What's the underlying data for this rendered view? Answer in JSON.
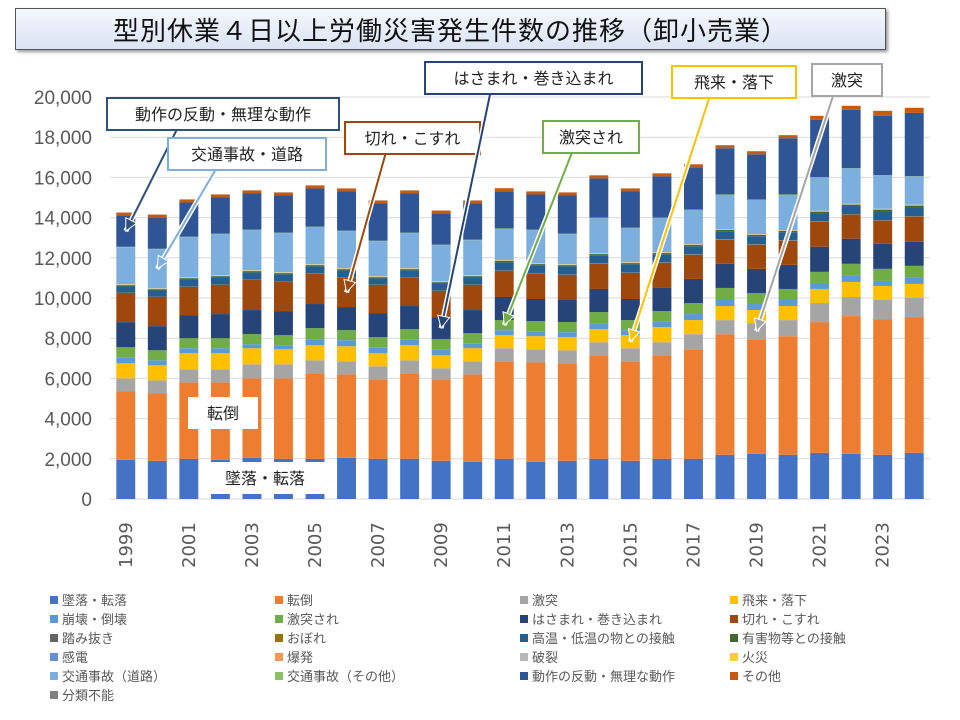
{
  "title": "型別休業４日以上労働災害発生件数の推移（卸小売業）",
  "chart_data": {
    "type": "bar",
    "stacked": true,
    "title": "型別休業４日以上労働災害発生件数の推移（卸小売業）",
    "xlabel": "",
    "ylabel": "",
    "ylim": [
      0,
      20000
    ],
    "yticks": [
      0,
      2000,
      4000,
      6000,
      8000,
      10000,
      12000,
      14000,
      16000,
      18000,
      20000
    ],
    "ytick_labels": [
      "0",
      "2,000",
      "4,000",
      "6,000",
      "8,000",
      "10,000",
      "12,000",
      "14,000",
      "16,000",
      "18,000",
      "20,000"
    ],
    "grid": true,
    "legend_position": "bottom",
    "categories": [
      "1999",
      "2000",
      "2001",
      "2002",
      "2003",
      "2004",
      "2005",
      "2006",
      "2007",
      "2008",
      "2009",
      "2010",
      "2011",
      "2012",
      "2013",
      "2014",
      "2015",
      "2016",
      "2017",
      "2018",
      "2019",
      "2020",
      "2021",
      "2022",
      "2023",
      "2024"
    ],
    "xtick_labels": [
      "1999",
      "2001",
      "2003",
      "2005",
      "2007",
      "2009",
      "2011",
      "2013",
      "2015",
      "2017",
      "2019",
      "2021",
      "2023"
    ],
    "series": [
      {
        "name": "墜落・転落",
        "color": "#4472C4",
        "values": [
          1950,
          1900,
          2000,
          1950,
          2050,
          2000,
          2000,
          2050,
          2000,
          2000,
          1900,
          1850,
          2000,
          1850,
          1900,
          2000,
          1900,
          2000,
          2000,
          2200,
          2250,
          2200,
          2300,
          2250,
          2200,
          2300
        ]
      },
      {
        "name": "転倒",
        "color": "#ED7D31",
        "values": [
          3400,
          3350,
          3800,
          3850,
          3950,
          4000,
          4250,
          4150,
          3950,
          4250,
          4050,
          4350,
          4850,
          4950,
          4850,
          5150,
          4950,
          5150,
          5450,
          6000,
          5700,
          5900,
          6500,
          6850,
          6750,
          6750
        ]
      },
      {
        "name": "激突",
        "color": "#A5A5A5",
        "values": [
          650,
          650,
          650,
          650,
          700,
          700,
          650,
          650,
          650,
          650,
          550,
          650,
          650,
          650,
          650,
          650,
          650,
          650,
          750,
          700,
          800,
          800,
          950,
          950,
          950,
          950
        ]
      },
      {
        "name": "飛来・落下",
        "color": "#FFC000",
        "values": [
          750,
          750,
          800,
          800,
          800,
          750,
          750,
          750,
          650,
          750,
          650,
          650,
          650,
          650,
          650,
          650,
          650,
          750,
          700,
          700,
          650,
          700,
          700,
          750,
          700,
          700
        ]
      },
      {
        "name": "崩壊・倒壊",
        "color": "#5B9BD5",
        "values": [
          300,
          250,
          250,
          250,
          200,
          200,
          300,
          300,
          300,
          300,
          300,
          250,
          250,
          250,
          250,
          300,
          250,
          300,
          300,
          350,
          300,
          300,
          300,
          300,
          250,
          300
        ]
      },
      {
        "name": "激突され",
        "color": "#70AD47",
        "values": [
          500,
          500,
          500,
          500,
          500,
          500,
          550,
          500,
          500,
          500,
          500,
          500,
          500,
          500,
          500,
          550,
          500,
          500,
          550,
          550,
          550,
          550,
          550,
          600,
          600,
          600
        ]
      },
      {
        "name": "はさまれ・巻き込まれ",
        "color": "#264478",
        "values": [
          1250,
          1200,
          1150,
          1200,
          1200,
          1200,
          1200,
          1150,
          1200,
          1150,
          1100,
          1150,
          1150,
          1100,
          1100,
          1150,
          1050,
          1150,
          1200,
          1200,
          1200,
          1200,
          1250,
          1250,
          1250,
          1200
        ]
      },
      {
        "name": "切れ・こすれ",
        "color": "#9E480E",
        "values": [
          1450,
          1450,
          1400,
          1450,
          1500,
          1450,
          1500,
          1450,
          1400,
          1400,
          1300,
          1250,
          1300,
          1250,
          1250,
          1250,
          1300,
          1250,
          1200,
          1200,
          1200,
          1200,
          1250,
          1200,
          1150,
          1250
        ]
      },
      {
        "name": "踏み抜き",
        "color": "#636363",
        "values": [
          20,
          20,
          20,
          20,
          20,
          20,
          20,
          20,
          20,
          20,
          20,
          20,
          20,
          20,
          20,
          20,
          20,
          20,
          20,
          20,
          20,
          20,
          20,
          20,
          20,
          20
        ]
      },
      {
        "name": "おぼれ",
        "color": "#997300",
        "values": [
          5,
          5,
          5,
          5,
          5,
          5,
          5,
          5,
          5,
          5,
          5,
          5,
          5,
          5,
          5,
          5,
          5,
          5,
          5,
          5,
          5,
          5,
          5,
          5,
          5,
          5
        ]
      },
      {
        "name": "高温・低温の物との接触",
        "color": "#255E91",
        "values": [
          300,
          300,
          350,
          350,
          350,
          350,
          350,
          350,
          300,
          350,
          350,
          350,
          400,
          400,
          400,
          400,
          400,
          400,
          400,
          400,
          400,
          400,
          400,
          400,
          450,
          450
        ]
      },
      {
        "name": "有害物等との接触",
        "color": "#43682B",
        "values": [
          60,
          60,
          60,
          60,
          60,
          60,
          60,
          60,
          60,
          60,
          60,
          60,
          70,
          60,
          60,
          60,
          60,
          60,
          60,
          60,
          60,
          60,
          70,
          70,
          70,
          70
        ]
      },
      {
        "name": "感電",
        "color": "#698ED0",
        "values": [
          10,
          10,
          10,
          10,
          10,
          10,
          10,
          10,
          10,
          10,
          10,
          10,
          10,
          10,
          10,
          10,
          10,
          10,
          10,
          10,
          10,
          10,
          10,
          10,
          10,
          10
        ]
      },
      {
        "name": "爆発",
        "color": "#F1975A",
        "values": [
          5,
          5,
          5,
          5,
          5,
          5,
          5,
          5,
          5,
          5,
          5,
          5,
          5,
          5,
          5,
          5,
          5,
          5,
          5,
          5,
          5,
          5,
          5,
          5,
          5,
          5
        ]
      },
      {
        "name": "破裂",
        "color": "#B7B7B7",
        "values": [
          10,
          10,
          10,
          10,
          10,
          10,
          10,
          10,
          10,
          10,
          10,
          10,
          10,
          10,
          10,
          10,
          10,
          10,
          10,
          10,
          10,
          10,
          10,
          10,
          10,
          10
        ]
      },
      {
        "name": "火災",
        "color": "#FFCD33",
        "values": [
          20,
          20,
          20,
          20,
          20,
          20,
          20,
          20,
          20,
          20,
          20,
          20,
          20,
          20,
          20,
          20,
          20,
          20,
          20,
          20,
          20,
          20,
          20,
          20,
          20,
          20
        ]
      },
      {
        "name": "交通事故（道路）",
        "color": "#7CAFDD",
        "values": [
          1850,
          1950,
          2000,
          2050,
          2000,
          1950,
          1850,
          1850,
          1750,
          1750,
          1800,
          1750,
          1550,
          1650,
          1500,
          1750,
          1700,
          1700,
          1700,
          1700,
          1700,
          1750,
          1650,
          1750,
          1650,
          1400
        ]
      },
      {
        "name": "交通事故（その他）",
        "color": "#8CC168",
        "values": [
          20,
          20,
          20,
          20,
          20,
          20,
          20,
          20,
          20,
          20,
          20,
          20,
          20,
          20,
          20,
          20,
          20,
          20,
          20,
          20,
          20,
          20,
          20,
          20,
          20,
          20
        ]
      },
      {
        "name": "動作の反動・無理な動作",
        "color": "#2F5597",
        "values": [
          1550,
          1550,
          1700,
          1800,
          1800,
          1850,
          1900,
          1950,
          1850,
          1950,
          1550,
          1800,
          1850,
          1750,
          1900,
          1950,
          1800,
          2050,
          2100,
          2300,
          2250,
          2800,
          2850,
          2900,
          2950,
          3150
        ]
      },
      {
        "name": "その他",
        "color": "#C55A11",
        "values": [
          150,
          150,
          150,
          150,
          150,
          150,
          150,
          150,
          150,
          150,
          150,
          150,
          150,
          150,
          150,
          150,
          150,
          150,
          150,
          150,
          150,
          150,
          200,
          200,
          250,
          250
        ]
      },
      {
        "name": "分類不能",
        "color": "#7F7F7F",
        "values": [
          5,
          5,
          5,
          5,
          5,
          5,
          5,
          5,
          5,
          5,
          5,
          5,
          5,
          5,
          5,
          5,
          5,
          5,
          5,
          5,
          5,
          5,
          5,
          5,
          5,
          5
        ]
      }
    ],
    "annotations": [
      {
        "text": "動作の反動・無理な動作",
        "target_series": "動作の反動・無理な動作",
        "target_category": "1999",
        "border_color": "#2F4F7F"
      },
      {
        "text": "交通事故・道路",
        "target_series": "交通事故（道路）",
        "target_category": "2000",
        "border_color": "#7CAFDD"
      },
      {
        "text": "切れ・こすれ",
        "target_series": "切れ・こすれ",
        "target_category": "2006",
        "border_color": "#9E480E"
      },
      {
        "text": "はさまれ・巻き込まれ",
        "target_series": "はさまれ・巻き込まれ",
        "target_category": "2009",
        "border_color": "#264478"
      },
      {
        "text": "激突され",
        "target_series": "激突され",
        "target_category": "2011",
        "border_color": "#70AD47"
      },
      {
        "text": "飛来・落下",
        "target_series": "飛来・落下",
        "target_category": "2015",
        "border_color": "#FFC000"
      },
      {
        "text": "激突",
        "target_series": "激突",
        "target_category": "2019",
        "border_color": "#A5A5A5"
      },
      {
        "text": "転倒",
        "target_series": "転倒",
        "target_category": "2002",
        "border_color": "#ffffff"
      },
      {
        "text": "墜落・転落",
        "target_series": "墜落・転落",
        "target_category": "2003",
        "border_color": "#ffffff"
      }
    ]
  }
}
